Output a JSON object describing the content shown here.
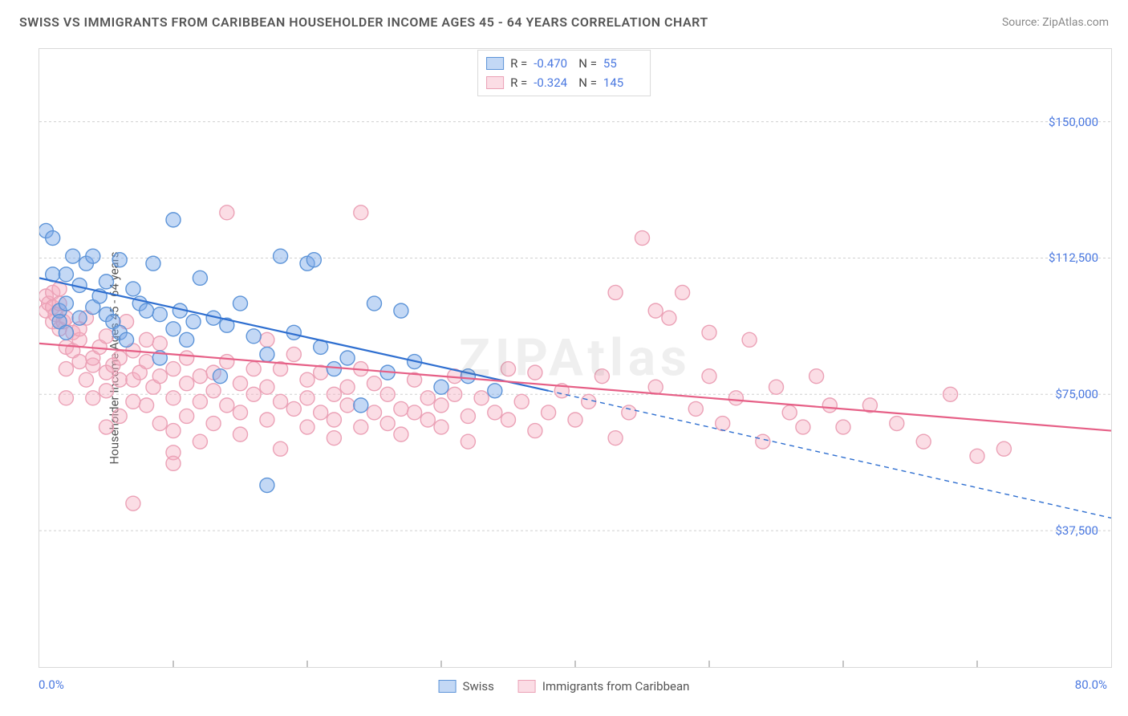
{
  "header": {
    "title": "SWISS VS IMMIGRANTS FROM CARIBBEAN HOUSEHOLDER INCOME AGES 45 - 64 YEARS CORRELATION CHART",
    "source": "Source: ZipAtlas.com"
  },
  "chart": {
    "type": "scatter",
    "y_label": "Householder Income Ages 45 - 64 years",
    "watermark": "ZIPAtlas",
    "background_color": "#ffffff",
    "grid_color": "#d0d0d0",
    "axis_color": "#d9d9d9",
    "label_color": "#555555",
    "tick_label_color": "#4a78e0",
    "xlim": [
      0,
      80
    ],
    "ylim": [
      0,
      170000
    ],
    "x_min_label": "0.0%",
    "x_max_label": "80.0%",
    "y_ticks": [
      {
        "v": 37500,
        "label": "$37,500"
      },
      {
        "v": 75000,
        "label": "$75,000"
      },
      {
        "v": 112500,
        "label": "$112,500"
      },
      {
        "v": 150000,
        "label": "$150,000"
      }
    ],
    "x_tick_positions": [
      10,
      20,
      30,
      40,
      50,
      60,
      70
    ],
    "marker_radius": 9,
    "marker_stroke_width": 1.4,
    "line_width": 2.2,
    "series": [
      {
        "name": "Swiss",
        "fill_color": "rgba(122,168,232,0.45)",
        "stroke_color": "#5d94d8",
        "line_color": "#2f6fd0",
        "R": "-0.470",
        "N": "55",
        "trend": {
          "x1": 0,
          "y1": 107000,
          "x2_solid": 38,
          "y2_solid": 76000,
          "x2": 80,
          "y2": 41000
        },
        "points": [
          [
            0.5,
            120000
          ],
          [
            1,
            118000
          ],
          [
            1,
            108000
          ],
          [
            1.5,
            98000
          ],
          [
            1.5,
            95000
          ],
          [
            2,
            108000
          ],
          [
            2,
            100000
          ],
          [
            2,
            92000
          ],
          [
            2.5,
            113000
          ],
          [
            3,
            105000
          ],
          [
            3,
            96000
          ],
          [
            3.5,
            111000
          ],
          [
            4,
            113000
          ],
          [
            4,
            99000
          ],
          [
            4.5,
            102000
          ],
          [
            5,
            97000
          ],
          [
            5,
            106000
          ],
          [
            5.5,
            95000
          ],
          [
            6,
            112000
          ],
          [
            6,
            92000
          ],
          [
            6.5,
            90000
          ],
          [
            7,
            104000
          ],
          [
            7.5,
            100000
          ],
          [
            8,
            98000
          ],
          [
            8.5,
            111000
          ],
          [
            9,
            97000
          ],
          [
            9,
            85000
          ],
          [
            10,
            123000
          ],
          [
            10,
            93000
          ],
          [
            10.5,
            98000
          ],
          [
            11,
            90000
          ],
          [
            11.5,
            95000
          ],
          [
            12,
            107000
          ],
          [
            13,
            96000
          ],
          [
            13.5,
            80000
          ],
          [
            14,
            94000
          ],
          [
            15,
            100000
          ],
          [
            16,
            91000
          ],
          [
            17,
            86000
          ],
          [
            18,
            113000
          ],
          [
            19,
            92000
          ],
          [
            20,
            111000
          ],
          [
            20.5,
            112000
          ],
          [
            21,
            88000
          ],
          [
            22,
            82000
          ],
          [
            23,
            85000
          ],
          [
            24,
            72000
          ],
          [
            25,
            100000
          ],
          [
            26,
            81000
          ],
          [
            28,
            84000
          ],
          [
            30,
            77000
          ],
          [
            32,
            80000
          ],
          [
            34,
            76000
          ],
          [
            17,
            50000
          ],
          [
            27,
            98000
          ]
        ]
      },
      {
        "name": "Immigrants from Caribbean",
        "fill_color": "rgba(244,170,190,0.40)",
        "stroke_color": "#eba1b6",
        "line_color": "#e65f86",
        "R": "-0.324",
        "N": "145",
        "trend": {
          "x1": 0,
          "y1": 89000,
          "x2_solid": 80,
          "y2_solid": 65000,
          "x2": 80,
          "y2": 65000
        },
        "points": [
          [
            0.5,
            102000
          ],
          [
            0.5,
            98000
          ],
          [
            0.7,
            100000
          ],
          [
            1,
            99000
          ],
          [
            1,
            95000
          ],
          [
            1,
            103000
          ],
          [
            1.2,
            97000
          ],
          [
            1.5,
            93000
          ],
          [
            1.5,
            100000
          ],
          [
            1.5,
            104000
          ],
          [
            1.8,
            95000
          ],
          [
            2,
            88000
          ],
          [
            2,
            82000
          ],
          [
            2,
            96000
          ],
          [
            2,
            74000
          ],
          [
            2.5,
            87000
          ],
          [
            2.5,
            92000
          ],
          [
            3,
            84000
          ],
          [
            3,
            90000
          ],
          [
            3,
            93000
          ],
          [
            3.5,
            79000
          ],
          [
            3.5,
            96000
          ],
          [
            4,
            83000
          ],
          [
            4,
            85000
          ],
          [
            4,
            74000
          ],
          [
            4.5,
            88000
          ],
          [
            5,
            81000
          ],
          [
            5,
            76000
          ],
          [
            5,
            91000
          ],
          [
            5,
            66000
          ],
          [
            5.5,
            83000
          ],
          [
            6,
            85000
          ],
          [
            6,
            69000
          ],
          [
            6,
            79000
          ],
          [
            6.5,
            95000
          ],
          [
            7,
            73000
          ],
          [
            7,
            87000
          ],
          [
            7,
            79000
          ],
          [
            7.5,
            81000
          ],
          [
            8,
            72000
          ],
          [
            8,
            84000
          ],
          [
            8,
            90000
          ],
          [
            8.5,
            77000
          ],
          [
            9,
            67000
          ],
          [
            9,
            80000
          ],
          [
            9,
            89000
          ],
          [
            10,
            74000
          ],
          [
            10,
            65000
          ],
          [
            10,
            82000
          ],
          [
            10,
            59000
          ],
          [
            11,
            78000
          ],
          [
            11,
            85000
          ],
          [
            11,
            69000
          ],
          [
            12,
            73000
          ],
          [
            12,
            80000
          ],
          [
            12,
            62000
          ],
          [
            13,
            76000
          ],
          [
            13,
            81000
          ],
          [
            13,
            67000
          ],
          [
            14,
            72000
          ],
          [
            14,
            84000
          ],
          [
            14,
            125000
          ],
          [
            15,
            70000
          ],
          [
            15,
            78000
          ],
          [
            15,
            64000
          ],
          [
            16,
            75000
          ],
          [
            16,
            82000
          ],
          [
            17,
            68000
          ],
          [
            17,
            77000
          ],
          [
            17,
            90000
          ],
          [
            18,
            73000
          ],
          [
            18,
            82000
          ],
          [
            18,
            60000
          ],
          [
            19,
            71000
          ],
          [
            19,
            86000
          ],
          [
            20,
            66000
          ],
          [
            20,
            79000
          ],
          [
            20,
            74000
          ],
          [
            21,
            70000
          ],
          [
            21,
            81000
          ],
          [
            22,
            68000
          ],
          [
            22,
            75000
          ],
          [
            22,
            63000
          ],
          [
            23,
            77000
          ],
          [
            23,
            72000
          ],
          [
            24,
            66000
          ],
          [
            24,
            82000
          ],
          [
            24,
            125000
          ],
          [
            25,
            70000
          ],
          [
            25,
            78000
          ],
          [
            26,
            67000
          ],
          [
            26,
            75000
          ],
          [
            27,
            71000
          ],
          [
            27,
            64000
          ],
          [
            28,
            70000
          ],
          [
            28,
            79000
          ],
          [
            29,
            68000
          ],
          [
            29,
            74000
          ],
          [
            30,
            72000
          ],
          [
            30,
            66000
          ],
          [
            31,
            75000
          ],
          [
            31,
            80000
          ],
          [
            32,
            69000
          ],
          [
            32,
            62000
          ],
          [
            33,
            74000
          ],
          [
            34,
            70000
          ],
          [
            35,
            68000
          ],
          [
            35,
            82000
          ],
          [
            36,
            73000
          ],
          [
            37,
            81000
          ],
          [
            37,
            65000
          ],
          [
            38,
            70000
          ],
          [
            39,
            76000
          ],
          [
            40,
            68000
          ],
          [
            41,
            73000
          ],
          [
            42,
            80000
          ],
          [
            43,
            63000
          ],
          [
            43,
            103000
          ],
          [
            44,
            70000
          ],
          [
            45,
            118000
          ],
          [
            46,
            77000
          ],
          [
            46,
            98000
          ],
          [
            47,
            96000
          ],
          [
            48,
            103000
          ],
          [
            49,
            71000
          ],
          [
            50,
            80000
          ],
          [
            50,
            92000
          ],
          [
            51,
            67000
          ],
          [
            52,
            74000
          ],
          [
            53,
            90000
          ],
          [
            54,
            62000
          ],
          [
            55,
            77000
          ],
          [
            56,
            70000
          ],
          [
            57,
            66000
          ],
          [
            58,
            80000
          ],
          [
            59,
            72000
          ],
          [
            60,
            66000
          ],
          [
            62,
            72000
          ],
          [
            64,
            67000
          ],
          [
            66,
            62000
          ],
          [
            68,
            75000
          ],
          [
            70,
            58000
          ],
          [
            72,
            60000
          ],
          [
            7,
            45000
          ],
          [
            10,
            56000
          ]
        ]
      }
    ],
    "legend_bottom": [
      "Swiss",
      "Immigrants from Caribbean"
    ]
  }
}
